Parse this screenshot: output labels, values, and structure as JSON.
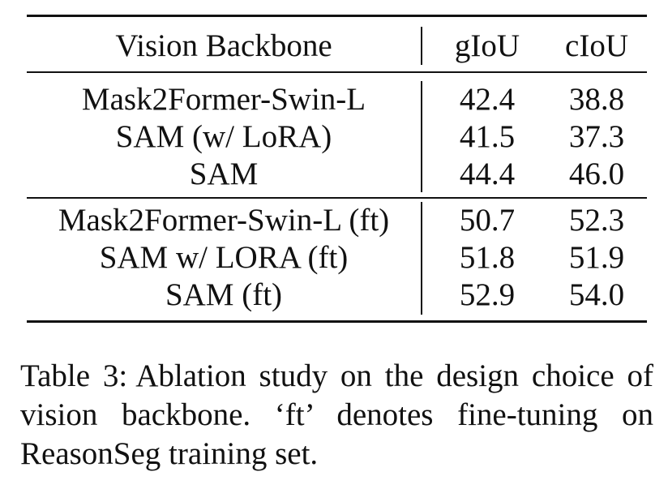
{
  "table": {
    "headers": [
      "Vision Backbone",
      "gIoU",
      "cIoU"
    ],
    "groups": [
      {
        "rows": [
          {
            "backbone": "Mask2Former-Swin-L",
            "giou": "42.4",
            "ciou": "38.8"
          },
          {
            "backbone": "SAM (w/ LoRA)",
            "giou": "41.5",
            "ciou": "37.3"
          },
          {
            "backbone": "SAM",
            "giou": "44.4",
            "ciou": "46.0"
          }
        ]
      },
      {
        "rows": [
          {
            "backbone": "Mask2Former-Swin-L (ft)",
            "giou": "50.7",
            "ciou": "52.3"
          },
          {
            "backbone": "SAM w/ LORA (ft)",
            "giou": "51.8",
            "ciou": "51.9"
          },
          {
            "backbone": "SAM (ft)",
            "giou": "52.9",
            "ciou": "54.0"
          }
        ]
      }
    ]
  },
  "caption": {
    "label": "Table 3:",
    "text": "Ablation study on the design choice of vision backbone. ‘ft’ denotes fine-tuning on ReasonSeg training set."
  }
}
